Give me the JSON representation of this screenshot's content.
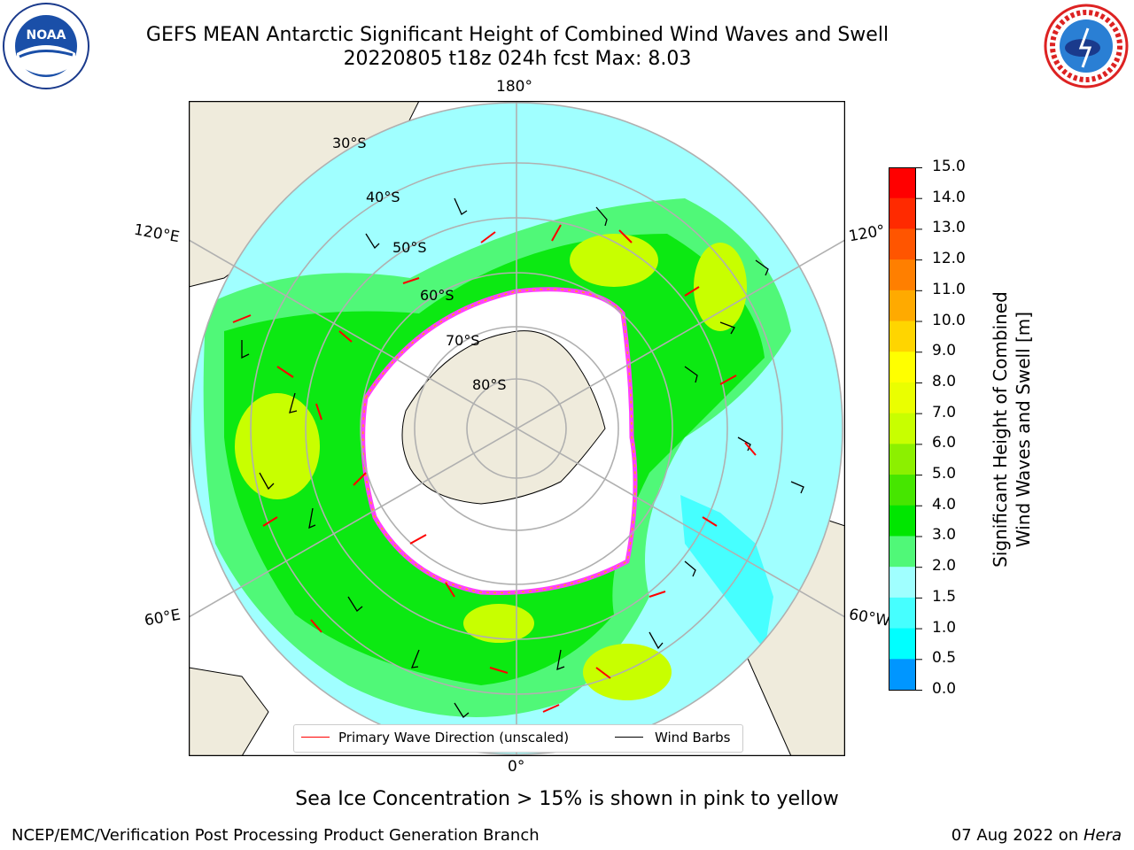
{
  "title": {
    "line1": "GEFS MEAN Antarctic Significant Height of Combined Wind Waves and Swell",
    "line2": "20220805 t18z 024h fcst   Max: 8.03"
  },
  "logos": {
    "left": {
      "name": "noaa-logo",
      "text": "NOAA",
      "ring_text": "NATIONAL OCEANIC AND ATMOSPHERIC ADMINISTRATION · U.S. DEPARTMENT OF COMMERCE"
    },
    "right": {
      "name": "nws-logo",
      "ring_text": "NATIONAL WEATHER SERVICE"
    }
  },
  "map": {
    "projection": "south-polar-stereographic",
    "longitude_labels": {
      "top": "180°",
      "left_upper": "120°E",
      "right_upper": "120°",
      "left_lower": "60°E",
      "right_lower": "60°W",
      "bottom": "0°"
    },
    "latitude_labels": [
      "30°S",
      "40°S",
      "50°S",
      "60°S",
      "70°S",
      "80°S"
    ],
    "legend": {
      "wave_label": "Primary Wave Direction (unscaled)",
      "barb_label": "Wind Barbs"
    },
    "colors": {
      "wave_arrow": "#ff0000",
      "wind_barb": "#000000",
      "land": "#efebdc",
      "ice": "#ffffff"
    }
  },
  "colorbar": {
    "label": "Significant Height of Combined\nWind Waves and Swell [m]",
    "ticks": [
      "15.0",
      "14.0",
      "13.0",
      "12.0",
      "11.0",
      "10.0",
      "9.0",
      "8.0",
      "7.0",
      "6.0",
      "5.0",
      "4.0",
      "3.0",
      "2.0",
      "1.5",
      "1.0",
      "0.5",
      "0.0"
    ],
    "bands": [
      "#ff0000",
      "#ff2a00",
      "#ff5500",
      "#ff7f00",
      "#ffaa00",
      "#ffd500",
      "#ffff00",
      "#eaff00",
      "#c8ff00",
      "#8cf000",
      "#46e600",
      "#00e600",
      "#50f878",
      "#a0ffff",
      "#46ffff",
      "#00ffff",
      "#0096ff",
      "#0050ff",
      "#0000ff"
    ]
  },
  "note": "Sea Ice Concentration > 15% is shown in pink to yellow",
  "footer": {
    "left": "NCEP/EMC/Verification Post Processing Product Generation Branch",
    "right_date": "07 Aug 2022 on ",
    "right_host": "Hera"
  }
}
